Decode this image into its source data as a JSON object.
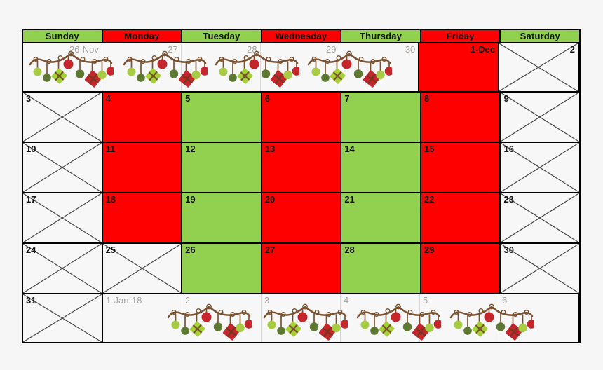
{
  "colors": {
    "red": "#fe0000",
    "green": "#92d050",
    "cell_bg": "#f7f7f7",
    "page_bg": "#f6f6f6",
    "border": "#000000",
    "faint_separator": "#d8d8d8",
    "cross_line": "#4a4a4a",
    "muted_text": "#a6a3a0",
    "day_text": "#141414",
    "garland_rope": "#7a5230",
    "garland_light_green": "#a7cb43",
    "garland_olive": "#5d7830",
    "garland_red": "#c5262b"
  },
  "weekday_header": [
    {
      "label": "Sunday",
      "color": "green"
    },
    {
      "label": "Monday",
      "color": "red"
    },
    {
      "label": "Tuesday",
      "color": "green"
    },
    {
      "label": "Wednesday",
      "color": "red"
    },
    {
      "label": "Thursday",
      "color": "green"
    },
    {
      "label": "Friday",
      "color": "red"
    },
    {
      "label": "Saturday",
      "color": "green"
    }
  ],
  "weeks": [
    {
      "cells": [
        {
          "day": "26-Nov",
          "muted": true,
          "align": "right",
          "sep": "faint"
        },
        {
          "day": "27",
          "muted": true,
          "align": "right",
          "sep": "faint"
        },
        {
          "day": "28",
          "muted": true,
          "align": "right",
          "sep": "faint"
        },
        {
          "day": "29",
          "muted": true,
          "align": "right",
          "sep": "faint"
        },
        {
          "day": "30",
          "muted": true,
          "align": "right"
        },
        {
          "day": "1-Dec",
          "fill": "red",
          "align": "right"
        },
        {
          "day": "2",
          "align": "right",
          "crossed": true
        }
      ],
      "garlands": [
        7,
        141,
        272,
        404
      ]
    },
    {
      "cells": [
        {
          "day": "3",
          "crossed": true
        },
        {
          "day": "4",
          "fill": "red"
        },
        {
          "day": "5",
          "fill": "green"
        },
        {
          "day": "6",
          "fill": "red"
        },
        {
          "day": "7",
          "fill": "green"
        },
        {
          "day": "8",
          "fill": "red"
        },
        {
          "day": "9",
          "crossed": true
        }
      ]
    },
    {
      "cells": [
        {
          "day": "10",
          "crossed": true
        },
        {
          "day": "11",
          "fill": "red"
        },
        {
          "day": "12",
          "fill": "green"
        },
        {
          "day": "13",
          "fill": "red"
        },
        {
          "day": "14",
          "fill": "green"
        },
        {
          "day": "15",
          "fill": "red"
        },
        {
          "day": "16",
          "crossed": true
        }
      ]
    },
    {
      "cells": [
        {
          "day": "17",
          "crossed": true
        },
        {
          "day": "18",
          "fill": "red"
        },
        {
          "day": "19",
          "fill": "green"
        },
        {
          "day": "20",
          "fill": "red"
        },
        {
          "day": "21",
          "fill": "green"
        },
        {
          "day": "22",
          "fill": "red"
        },
        {
          "day": "23",
          "crossed": true
        }
      ]
    },
    {
      "cells": [
        {
          "day": "24",
          "crossed": true
        },
        {
          "day": "25",
          "crossed": true
        },
        {
          "day": "26",
          "fill": "green"
        },
        {
          "day": "27",
          "fill": "red"
        },
        {
          "day": "28",
          "fill": "green"
        },
        {
          "day": "29",
          "fill": "red"
        },
        {
          "day": "30",
          "crossed": true
        }
      ]
    },
    {
      "cells": [
        {
          "day": "31",
          "crossed": true
        },
        {
          "day": "1-Jan-18",
          "muted": true,
          "sep": "faint"
        },
        {
          "day": "2",
          "muted": true,
          "sep": "faint"
        },
        {
          "day": "3",
          "muted": true,
          "sep": "faint"
        },
        {
          "day": "4",
          "muted": true,
          "sep": "faint"
        },
        {
          "day": "5",
          "muted": true,
          "sep": "faint"
        },
        {
          "day": "6",
          "muted": true
        }
      ],
      "garlands": [
        204,
        341,
        474,
        607
      ]
    }
  ]
}
